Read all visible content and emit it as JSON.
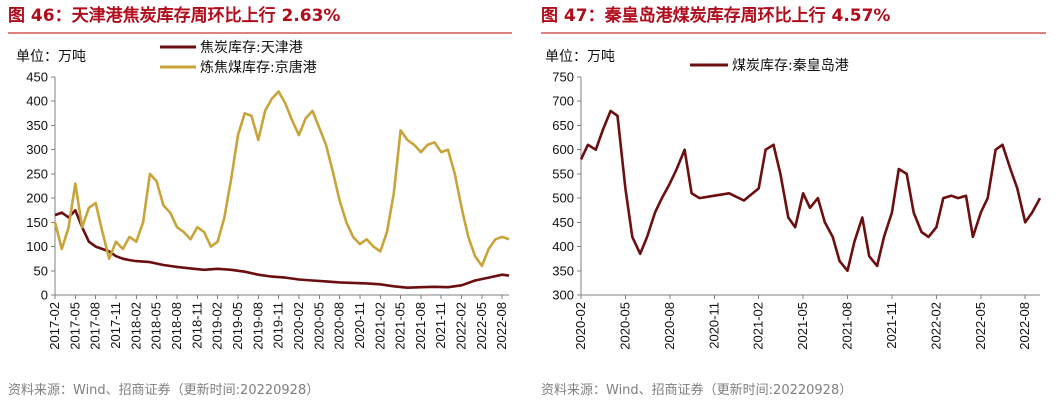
{
  "source_note": "资料来源：Wind、招商证券（更新时间:20220928）",
  "chart_data": [
    {
      "type": "line",
      "title": "图 46：天津港焦炭库存周环比上行 2.63%",
      "unit_label": "单位：万吨",
      "ylim": [
        0,
        450
      ],
      "yticks": [
        0,
        50,
        100,
        150,
        200,
        250,
        300,
        350,
        400,
        450
      ],
      "x_range": [
        "2017-02",
        "2022-09"
      ],
      "xtick_labels": [
        "2017-02",
        "2017-05",
        "2017-08",
        "2017-11",
        "2018-02",
        "2018-05",
        "2018-08",
        "2018-11",
        "2019-02",
        "2019-05",
        "2019-08",
        "2019-11",
        "2020-02",
        "2020-05",
        "2020-08",
        "2020-11",
        "2021-02",
        "2021-05",
        "2021-08",
        "2021-11",
        "2022-02",
        "2022-05",
        "2022-08"
      ],
      "grid": false,
      "legend_position": "top",
      "series": [
        {
          "name": "焦炭库存:天津港",
          "color": "#6b0f10",
          "points": [
            [
              "2017-02",
              165
            ],
            [
              "2017-03",
              170
            ],
            [
              "2017-04",
              160
            ],
            [
              "2017-05",
              175
            ],
            [
              "2017-06",
              140
            ],
            [
              "2017-07",
              110
            ],
            [
              "2017-08",
              100
            ],
            [
              "2017-09",
              95
            ],
            [
              "2017-10",
              90
            ],
            [
              "2017-11",
              80
            ],
            [
              "2017-12",
              75
            ],
            [
              "2018-01",
              72
            ],
            [
              "2018-02",
              70
            ],
            [
              "2018-04",
              68
            ],
            [
              "2018-06",
              62
            ],
            [
              "2018-08",
              58
            ],
            [
              "2018-10",
              55
            ],
            [
              "2018-12",
              52
            ],
            [
              "2019-02",
              54
            ],
            [
              "2019-04",
              52
            ],
            [
              "2019-06",
              48
            ],
            [
              "2019-08",
              42
            ],
            [
              "2019-10",
              38
            ],
            [
              "2019-12",
              36
            ],
            [
              "2020-02",
              32
            ],
            [
              "2020-04",
              30
            ],
            [
              "2020-06",
              28
            ],
            [
              "2020-08",
              26
            ],
            [
              "2020-10",
              25
            ],
            [
              "2020-12",
              24
            ],
            [
              "2021-02",
              22
            ],
            [
              "2021-04",
              18
            ],
            [
              "2021-06",
              15
            ],
            [
              "2021-08",
              16
            ],
            [
              "2021-10",
              17
            ],
            [
              "2021-12",
              16
            ],
            [
              "2022-02",
              20
            ],
            [
              "2022-04",
              30
            ],
            [
              "2022-06",
              36
            ],
            [
              "2022-08",
              42
            ],
            [
              "2022-09",
              40
            ]
          ]
        },
        {
          "name": "炼焦煤库存:京唐港",
          "color": "#c9a43a",
          "points": [
            [
              "2017-02",
              150
            ],
            [
              "2017-03",
              95
            ],
            [
              "2017-04",
              140
            ],
            [
              "2017-05",
              230
            ],
            [
              "2017-06",
              140
            ],
            [
              "2017-07",
              180
            ],
            [
              "2017-08",
              190
            ],
            [
              "2017-09",
              130
            ],
            [
              "2017-10",
              75
            ],
            [
              "2017-11",
              110
            ],
            [
              "2017-12",
              95
            ],
            [
              "2018-01",
              120
            ],
            [
              "2018-02",
              110
            ],
            [
              "2018-03",
              150
            ],
            [
              "2018-04",
              250
            ],
            [
              "2018-05",
              235
            ],
            [
              "2018-06",
              185
            ],
            [
              "2018-07",
              170
            ],
            [
              "2018-08",
              140
            ],
            [
              "2018-09",
              130
            ],
            [
              "2018-10",
              115
            ],
            [
              "2018-11",
              140
            ],
            [
              "2018-12",
              130
            ],
            [
              "2019-01",
              100
            ],
            [
              "2019-02",
              110
            ],
            [
              "2019-03",
              160
            ],
            [
              "2019-04",
              240
            ],
            [
              "2019-05",
              330
            ],
            [
              "2019-06",
              375
            ],
            [
              "2019-07",
              370
            ],
            [
              "2019-08",
              320
            ],
            [
              "2019-09",
              380
            ],
            [
              "2019-10",
              405
            ],
            [
              "2019-11",
              420
            ],
            [
              "2019-12",
              395
            ],
            [
              "2020-01",
              360
            ],
            [
              "2020-02",
              330
            ],
            [
              "2020-03",
              365
            ],
            [
              "2020-04",
              380
            ],
            [
              "2020-05",
              345
            ],
            [
              "2020-06",
              310
            ],
            [
              "2020-07",
              255
            ],
            [
              "2020-08",
              195
            ],
            [
              "2020-09",
              150
            ],
            [
              "2020-10",
              120
            ],
            [
              "2020-11",
              105
            ],
            [
              "2020-12",
              115
            ],
            [
              "2021-01",
              100
            ],
            [
              "2021-02",
              90
            ],
            [
              "2021-03",
              130
            ],
            [
              "2021-04",
              210
            ],
            [
              "2021-05",
              340
            ],
            [
              "2021-06",
              320
            ],
            [
              "2021-07",
              310
            ],
            [
              "2021-08",
              295
            ],
            [
              "2021-09",
              310
            ],
            [
              "2021-10",
              315
            ],
            [
              "2021-11",
              295
            ],
            [
              "2021-12",
              300
            ],
            [
              "2022-01",
              250
            ],
            [
              "2022-02",
              180
            ],
            [
              "2022-03",
              120
            ],
            [
              "2022-04",
              80
            ],
            [
              "2022-05",
              60
            ],
            [
              "2022-06",
              95
            ],
            [
              "2022-07",
              115
            ],
            [
              "2022-08",
              120
            ],
            [
              "2022-09",
              115
            ]
          ]
        }
      ]
    },
    {
      "type": "line",
      "title": "图 47：秦皇岛港煤炭库存周环比上行 4.57%",
      "unit_label": "单位：万吨",
      "ylim": [
        300,
        750
      ],
      "yticks": [
        300,
        350,
        400,
        450,
        500,
        550,
        600,
        650,
        700,
        750
      ],
      "x_range": [
        "2020-02",
        "2022-09"
      ],
      "xtick_labels": [
        "2020-02",
        "2020-05",
        "2020-08",
        "2020-11",
        "2021-02",
        "2021-05",
        "2021-08",
        "2021-11",
        "2022-02",
        "2022-05",
        "2022-08"
      ],
      "grid": false,
      "legend_position": "top",
      "series": [
        {
          "name": "煤炭库存:秦皇岛港",
          "color": "#6b0f10",
          "points": [
            [
              "2020-02",
              580
            ],
            [
              "2020-02-15",
              610
            ],
            [
              "2020-03",
              600
            ],
            [
              "2020-03-15",
              640
            ],
            [
              "2020-04",
              680
            ],
            [
              "2020-04-15",
              670
            ],
            [
              "2020-05",
              520
            ],
            [
              "2020-05-15",
              420
            ],
            [
              "2020-06",
              385
            ],
            [
              "2020-06-15",
              420
            ],
            [
              "2020-07",
              470
            ],
            [
              "2020-07-15",
              500
            ],
            [
              "2020-08",
              530
            ],
            [
              "2020-08-15",
              560
            ],
            [
              "2020-09",
              600
            ],
            [
              "2020-09-15",
              510
            ],
            [
              "2020-10",
              500
            ],
            [
              "2020-11",
              505
            ],
            [
              "2020-12",
              510
            ],
            [
              "2021-01",
              495
            ],
            [
              "2021-02",
              520
            ],
            [
              "2021-02-15",
              600
            ],
            [
              "2021-03",
              610
            ],
            [
              "2021-03-15",
              550
            ],
            [
              "2021-04",
              460
            ],
            [
              "2021-04-15",
              440
            ],
            [
              "2021-05",
              510
            ],
            [
              "2021-05-15",
              480
            ],
            [
              "2021-06",
              500
            ],
            [
              "2021-06-15",
              450
            ],
            [
              "2021-07",
              420
            ],
            [
              "2021-07-15",
              370
            ],
            [
              "2021-08",
              350
            ],
            [
              "2021-08-15",
              410
            ],
            [
              "2021-09",
              460
            ],
            [
              "2021-09-15",
              380
            ],
            [
              "2021-10",
              360
            ],
            [
              "2021-10-15",
              420
            ],
            [
              "2021-11",
              470
            ],
            [
              "2021-11-15",
              560
            ],
            [
              "2021-12",
              550
            ],
            [
              "2021-12-15",
              470
            ],
            [
              "2022-01",
              430
            ],
            [
              "2022-01-15",
              420
            ],
            [
              "2022-02",
              440
            ],
            [
              "2022-02-15",
              500
            ],
            [
              "2022-03",
              505
            ],
            [
              "2022-03-15",
              500
            ],
            [
              "2022-04",
              505
            ],
            [
              "2022-04-15",
              420
            ],
            [
              "2022-05",
              470
            ],
            [
              "2022-05-15",
              500
            ],
            [
              "2022-06",
              600
            ],
            [
              "2022-06-15",
              610
            ],
            [
              "2022-07",
              560
            ],
            [
              "2022-07-15",
              520
            ],
            [
              "2022-08",
              450
            ],
            [
              "2022-08-15",
              470
            ],
            [
              "2022-09",
              500
            ]
          ]
        }
      ]
    }
  ]
}
